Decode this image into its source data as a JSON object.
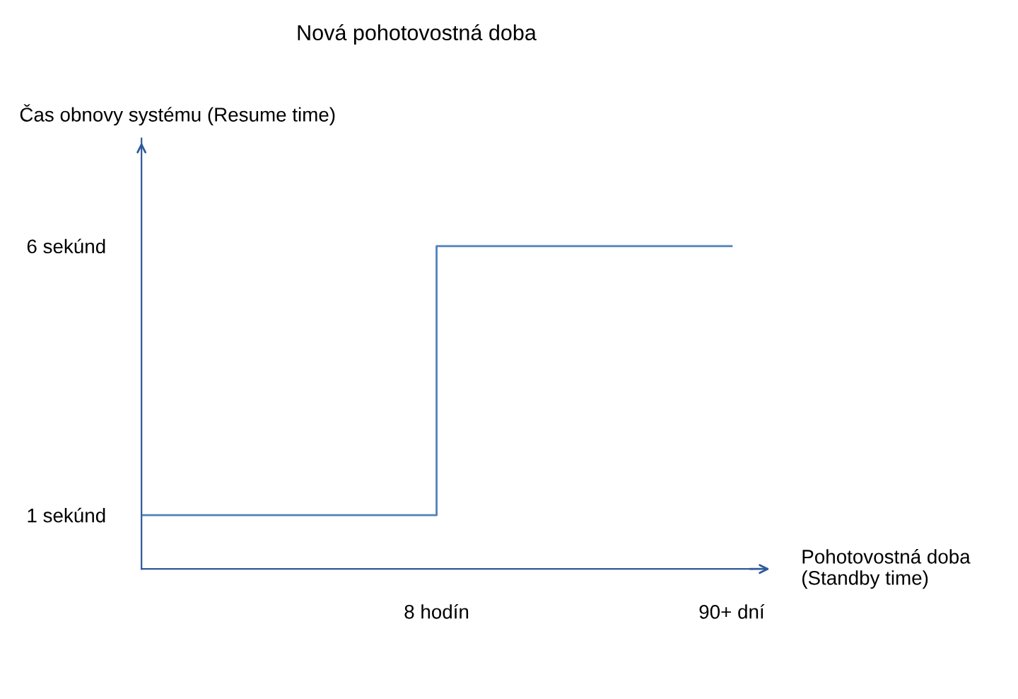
{
  "chart_data": {
    "type": "step",
    "title": "Nová pohotovostná doba",
    "xlabel": "Pohotovostná doba\n(Standby time)",
    "ylabel": "Čas obnovy systému (Resume time)",
    "categories": [
      null,
      "8 hodín",
      "90+ dní"
    ],
    "series": [
      {
        "color": "#4f81bd",
        "values": [
          1,
          6,
          6
        ]
      }
    ],
    "ylim": [
      0,
      8
    ],
    "yticks": [
      {
        "value": 1,
        "label": "1 sekúnd"
      },
      {
        "value": 6,
        "label": "6 sekúnd"
      }
    ],
    "grid": false,
    "legend": false,
    "marker": "none",
    "line_style": "solid"
  }
}
